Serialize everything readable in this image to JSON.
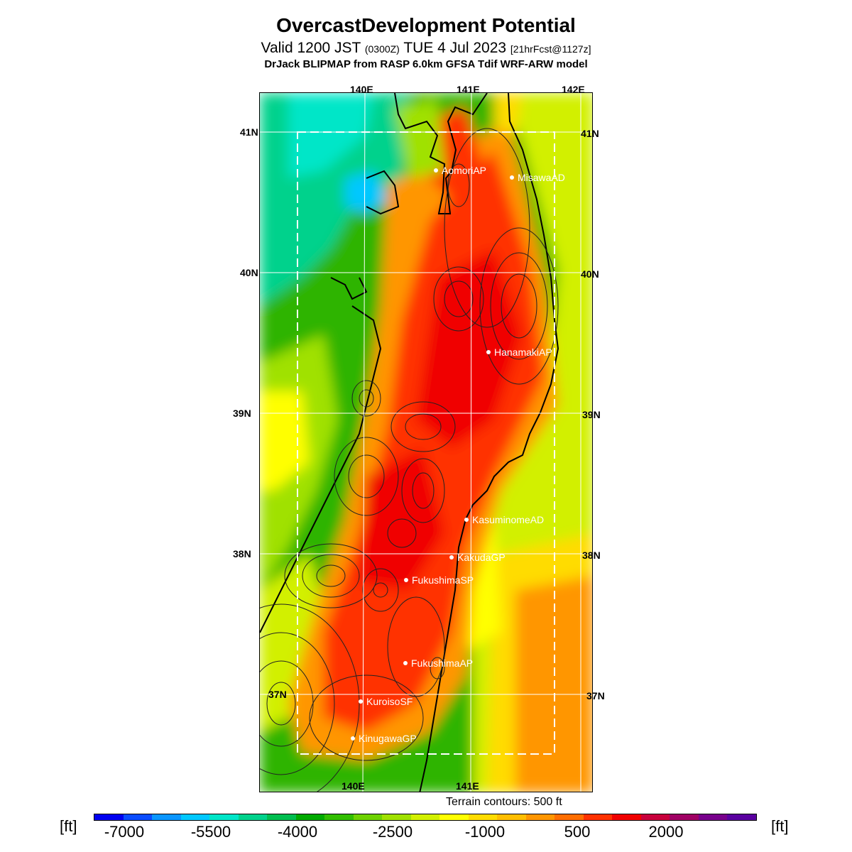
{
  "title": "OvercastDevelopment Potential",
  "subtitle": {
    "valid": "Valid 1200 JST",
    "utc": "(0300Z)",
    "date": "TUE 4 Jul 2023",
    "forecast": "[21hrFcst@1127z]"
  },
  "model_line": "DrJack BLIPMAP from RASP 6.0km GFSA Tdif WRF-ARW model",
  "lon_labels_top": [
    "140E",
    "141E",
    "142E"
  ],
  "lon_labels_bottom": [
    "140E",
    "141E"
  ],
  "lat_labels": [
    "41N",
    "40N",
    "39N",
    "38N",
    "37N"
  ],
  "stations": [
    "AomoriAP",
    "MisawaAD",
    "HanamakiAP",
    "KasuminomeAD",
    "KakudaGP",
    "FukushimaSP",
    "FukushimaAP",
    "KuroisoSF",
    "KinugawaGP"
  ],
  "terrain_note": "Terrain contours: 500 ft",
  "colorbar": {
    "unit": "[ft]",
    "labels": [
      "-7000",
      "-5500",
      "-4000",
      "-2500",
      "-1000",
      "500",
      "2000"
    ],
    "colors": [
      "#0000f0",
      "#0a4cff",
      "#0a96ff",
      "#00c8ff",
      "#00e6c8",
      "#00d28c",
      "#00be50",
      "#00aa00",
      "#32be00",
      "#6ed200",
      "#a0e100",
      "#d2f000",
      "#ffff00",
      "#ffdc00",
      "#ffbe00",
      "#ff9600",
      "#ff6e00",
      "#ff3200",
      "#f00000",
      "#c8003c",
      "#a00064",
      "#78008c",
      "#5a00a0"
    ]
  }
}
